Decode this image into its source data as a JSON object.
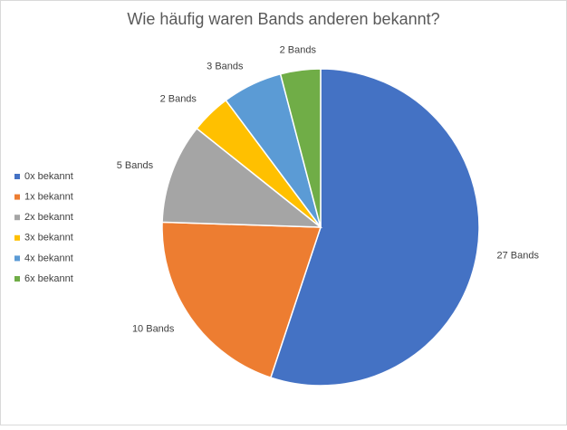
{
  "chart_data": {
    "type": "pie",
    "title": "Wie häufig waren Bands anderen bekannt?",
    "categories": [
      "0x bekannt",
      "1x bekannt",
      "2x bekannt",
      "3x bekannt",
      "4x bekannt",
      "6x bekannt"
    ],
    "values": [
      27,
      10,
      5,
      2,
      3,
      2
    ],
    "value_labels": [
      "27 Bands",
      "10 Bands",
      "5 Bands",
      "2 Bands",
      "3 Bands",
      "2 Bands"
    ],
    "colors": [
      "#4472c4",
      "#ed7d31",
      "#a5a5a5",
      "#ffc000",
      "#5b9bd5",
      "#70ad47"
    ],
    "legend": "left"
  }
}
